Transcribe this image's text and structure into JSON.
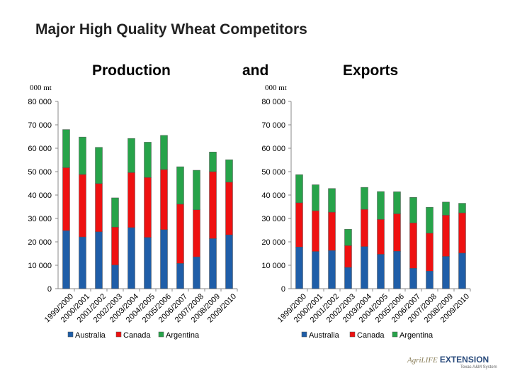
{
  "page": {
    "title": "Major High Quality Wheat Competitors",
    "subtitle_left": "Production",
    "subtitle_mid": "and",
    "subtitle_right": "Exports",
    "logo_text_1": "AgriLIFE",
    "logo_text_2": "EXTENSION",
    "logo_tagline": "Texas A&M System"
  },
  "colors": {
    "australia": "#1f5ea8",
    "canada": "#ee1111",
    "argentina": "#27a34a"
  },
  "chart_data": [
    {
      "type": "bar",
      "stacked": true,
      "title": "Production",
      "ylabel": "000 mt",
      "ylim": [
        0,
        80000
      ],
      "yticks": [
        "0",
        "10 000",
        "20 000",
        "30 000",
        "40 000",
        "50 000",
        "60 000",
        "70 000",
        "80 000"
      ],
      "categories": [
        "1999/2000",
        "2000/2001",
        "2001/2002",
        "2002/2003",
        "2003/2004",
        "2004/2005",
        "2005/2006",
        "2006/2007",
        "2007/2008",
        "2008/2009",
        "2009/2010"
      ],
      "series": [
        {
          "name": "Australia",
          "values": [
            24800,
            22100,
            24300,
            10100,
            26100,
            21900,
            25200,
            10800,
            13600,
            21400,
            23000
          ]
        },
        {
          "name": "Canada",
          "values": [
            26900,
            26700,
            20600,
            16200,
            23500,
            25600,
            25700,
            25300,
            20100,
            28600,
            22500
          ]
        },
        {
          "name": "Argentina",
          "values": [
            16300,
            16000,
            15500,
            12500,
            14600,
            15100,
            14600,
            16000,
            16900,
            8400,
            9600
          ]
        }
      ],
      "legend": [
        "Australia",
        "Canada",
        "Argentina"
      ],
      "legend_position": "bottom"
    },
    {
      "type": "bar",
      "stacked": true,
      "title": "Exports",
      "ylabel": "000 mt",
      "ylim": [
        0,
        80000
      ],
      "yticks": [
        "0",
        "10 000",
        "20 000",
        "30 000",
        "40 000",
        "50 000",
        "60 000",
        "70 000",
        "80 000"
      ],
      "categories": [
        "1999/2000",
        "2000/2001",
        "2001/2002",
        "2002/2003",
        "2003/2004",
        "2004/2005",
        "2005/2006",
        "2006/2007",
        "2007/2008",
        "2008/2009",
        "2009/2010"
      ],
      "series": [
        {
          "name": "Australia",
          "values": [
            17800,
            15900,
            16300,
            9100,
            18000,
            14700,
            16000,
            8700,
            7500,
            13800,
            15200
          ]
        },
        {
          "name": "Canada",
          "values": [
            18900,
            17400,
            16400,
            9300,
            15900,
            14900,
            16000,
            19400,
            16200,
            17600,
            17200
          ]
        },
        {
          "name": "Argentina",
          "values": [
            12000,
            11100,
            10100,
            7000,
            9400,
            11900,
            9400,
            10900,
            11100,
            5600,
            4100
          ]
        }
      ],
      "legend": [
        "Australia",
        "Canada",
        "Argentina"
      ],
      "legend_position": "bottom"
    }
  ]
}
